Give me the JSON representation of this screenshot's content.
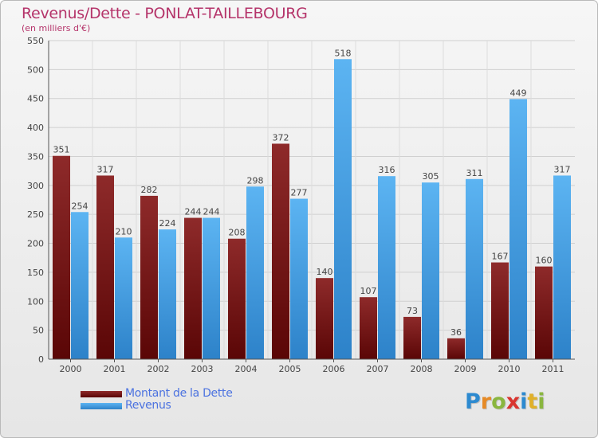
{
  "chart_data": {
    "type": "bar",
    "title": "Revenus/Dette - PONLAT-TAILLEBOURG",
    "subtitle": "(en milliers d'€)",
    "xlabel": "",
    "ylabel": "",
    "ylim": [
      0,
      550
    ],
    "yticks": [
      0,
      50,
      100,
      150,
      200,
      250,
      300,
      350,
      400,
      450,
      500,
      550
    ],
    "categories": [
      "2000",
      "2001",
      "2002",
      "2003",
      "2004",
      "2005",
      "2006",
      "2007",
      "2008",
      "2009",
      "2010",
      "2011"
    ],
    "series": [
      {
        "name": "Montant de la Dette",
        "color": "#7a1a1a",
        "values": [
          351,
          317,
          282,
          244,
          208,
          372,
          140,
          107,
          73,
          36,
          167,
          160
        ]
      },
      {
        "name": "Revenus",
        "color": "#4aa3e6",
        "values": [
          254,
          210,
          224,
          244,
          298,
          277,
          518,
          316,
          305,
          311,
          449,
          317
        ]
      }
    ],
    "legend_position": "bottom-left",
    "grid": true
  },
  "legend": {
    "items": [
      {
        "label": "Montant de la Dette",
        "color": "#7a1a1a"
      },
      {
        "label": "Revenus",
        "color": "#4aa3e6"
      }
    ]
  },
  "logo": {
    "letters": [
      "P",
      "r",
      "o",
      "x",
      "i",
      "t",
      "i"
    ]
  }
}
